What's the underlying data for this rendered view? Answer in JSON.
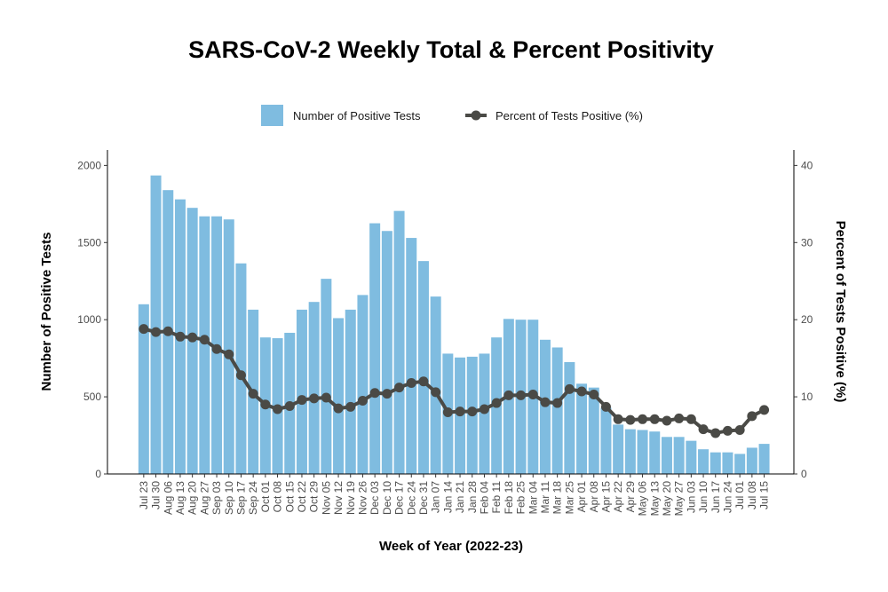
{
  "chart_data": {
    "type": "bar",
    "title": "SARS-CoV-2 Weekly Total & Percent Positivity",
    "xlabel": "Week of Year (2022-23)",
    "ylabel": "Number of Positive Tests",
    "y2label": "Percent of Tests Positive (%)",
    "ylim": [
      0,
      2100
    ],
    "y2lim": [
      0,
      42
    ],
    "yticks": [
      0,
      500,
      1000,
      1500,
      2000
    ],
    "y2ticks": [
      0,
      10,
      20,
      30,
      40
    ],
    "grid": false,
    "legend_position": "top",
    "categories": [
      "Jul 23",
      "Jul 30",
      "Aug 06",
      "Aug 13",
      "Aug 20",
      "Aug 27",
      "Sep 03",
      "Sep 10",
      "Sep 17",
      "Sep 24",
      "Oct 01",
      "Oct 08",
      "Oct 15",
      "Oct 22",
      "Oct 29",
      "Nov 05",
      "Nov 12",
      "Nov 19",
      "Nov 26",
      "Dec 03",
      "Dec 10",
      "Dec 17",
      "Dec 24",
      "Dec 31",
      "Jan 07",
      "Jan 14",
      "Jan 21",
      "Jan 28",
      "Feb 04",
      "Feb 11",
      "Feb 18",
      "Feb 25",
      "Mar 04",
      "Mar 11",
      "Mar 18",
      "Mar 25",
      "Apr 01",
      "Apr 08",
      "Apr 15",
      "Apr 22",
      "Apr 29",
      "May 06",
      "May 13",
      "May 20",
      "May 27",
      "Jun 03",
      "Jun 10",
      "Jun 17",
      "Jun 24",
      "Jul 01",
      "Jul 08",
      "Jul 15"
    ],
    "series": [
      {
        "name": "Number of Positive Tests",
        "type": "bar",
        "axis": "left",
        "color": "#7fbce0",
        "values": [
          1100,
          1935,
          1840,
          1780,
          1725,
          1670,
          1670,
          1650,
          1365,
          1065,
          885,
          880,
          915,
          1065,
          1115,
          1265,
          1010,
          1065,
          1160,
          1625,
          1575,
          1705,
          1530,
          1380,
          1150,
          780,
          755,
          760,
          780,
          885,
          1005,
          1000,
          1000,
          870,
          820,
          725,
          585,
          560,
          430,
          320,
          290,
          285,
          275,
          240,
          240,
          215,
          160,
          140,
          140,
          130,
          170,
          195
        ]
      },
      {
        "name": "Percent of Tests Positive (%)",
        "type": "line",
        "axis": "right",
        "color": "#4a4a46",
        "values": [
          18.8,
          18.4,
          18.5,
          17.8,
          17.7,
          17.4,
          16.2,
          15.5,
          12.8,
          10.4,
          9.0,
          8.4,
          8.8,
          9.6,
          9.8,
          9.9,
          8.5,
          8.7,
          9.5,
          10.5,
          10.4,
          11.2,
          11.8,
          12.0,
          10.6,
          8.0,
          8.1,
          8.1,
          8.4,
          9.2,
          10.2,
          10.2,
          10.3,
          9.3,
          9.2,
          11.0,
          10.7,
          10.3,
          8.7,
          7.1,
          7.0,
          7.1,
          7.1,
          6.9,
          7.2,
          7.1,
          5.8,
          5.3,
          5.6,
          5.7,
          7.5,
          8.3
        ]
      }
    ]
  }
}
